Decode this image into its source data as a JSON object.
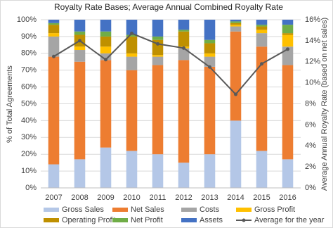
{
  "chart_data": {
    "type": "bar",
    "stacked": true,
    "title": "Royalty Rate Bases; Average Annual Combined Royalty Rate",
    "y_label": "% of Total Agreements",
    "y2_label": "Average Annual Royalty Rate (based on net sales)",
    "categories": [
      "2007",
      "2008",
      "2009",
      "2010",
      "2011",
      "2012",
      "2013",
      "2014",
      "2015",
      "2016"
    ],
    "series": [
      {
        "name": "Gross Sales",
        "color": "#b4c7e7",
        "values": [
          14,
          17,
          24,
          22,
          20,
          15,
          20,
          40,
          22,
          17
        ]
      },
      {
        "name": "Net Sales",
        "color": "#ed7d31",
        "values": [
          64,
          58,
          52,
          48,
          53,
          61,
          52,
          53,
          62,
          56
        ]
      },
      {
        "name": "Costs",
        "color": "#a5a5a5",
        "values": [
          12,
          7,
          4,
          8,
          5,
          7,
          6,
          3,
          8,
          11
        ]
      },
      {
        "name": "Gross Profit",
        "color": "#ffc000",
        "values": [
          2,
          2,
          4,
          2,
          1,
          1,
          2,
          1,
          2,
          7
        ]
      },
      {
        "name": "Operating Profit",
        "color": "#bf9000",
        "values": [
          5,
          7,
          6,
          10,
          9,
          9,
          6,
          1,
          2,
          1
        ]
      },
      {
        "name": "Net Profit",
        "color": "#70ad47",
        "values": [
          1,
          2,
          3,
          1,
          2,
          1,
          2,
          1,
          1,
          5
        ]
      },
      {
        "name": "Assets",
        "color": "#4472c4",
        "values": [
          2,
          7,
          7,
          9,
          10,
          6,
          12,
          1,
          3,
          3
        ]
      },
      {
        "name": "Average for the year",
        "color": "#595959",
        "type": "line",
        "axis": "y2",
        "values": [
          12.5,
          14.0,
          12.2,
          14.7,
          13.7,
          13.3,
          11.5,
          8.9,
          11.8,
          13.2
        ]
      }
    ],
    "ylim": [
      0,
      100
    ],
    "yticks": [
      {
        "value": 0,
        "label": "0%"
      },
      {
        "value": 10,
        "label": "10%"
      },
      {
        "value": 20,
        "label": "20%"
      },
      {
        "value": 30,
        "label": "30%"
      },
      {
        "value": 40,
        "label": "40%"
      },
      {
        "value": 50,
        "label": "50%"
      },
      {
        "value": 60,
        "label": "60%"
      },
      {
        "value": 70,
        "label": "70%"
      },
      {
        "value": 80,
        "label": "80%"
      },
      {
        "value": 90,
        "label": "90%"
      },
      {
        "value": 100,
        "label": "100%"
      }
    ],
    "y2lim": [
      0,
      16
    ],
    "y2ticks": [
      {
        "value": 0,
        "label": "0%"
      },
      {
        "value": 2,
        "label": "2%"
      },
      {
        "value": 4,
        "label": "4%"
      },
      {
        "value": 6,
        "label": "6%"
      },
      {
        "value": 8,
        "label": "8%"
      },
      {
        "value": 10,
        "label": "10%"
      },
      {
        "value": 12,
        "label": "12%"
      },
      {
        "value": 14,
        "label": "14%"
      },
      {
        "value": 16,
        "label": "16%"
      }
    ],
    "grid": true,
    "legend": "bottom"
  }
}
